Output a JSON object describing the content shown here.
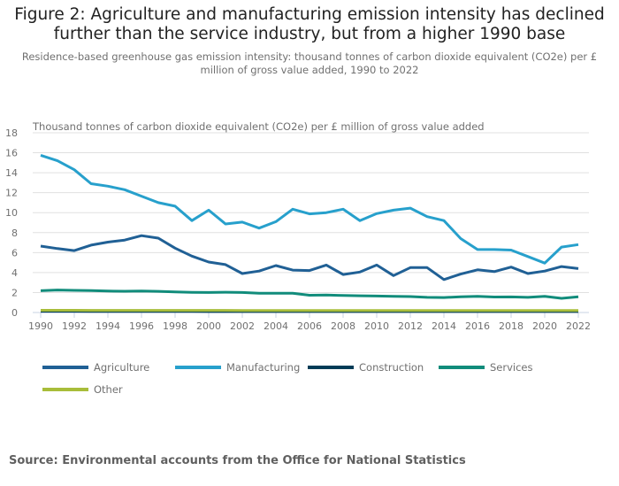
{
  "header": {
    "title": "Figure 2: Agriculture and manufacturing emission intensity has declined further than the service industry, but from a higher 1990 base",
    "subtitle": "Residence-based greenhouse gas emission intensity: thousand tonnes of carbon dioxide equivalent (CO2e) per £ million of gross value added, 1990 to 2022"
  },
  "footer": {
    "source": "Source: Environmental accounts from the Office for National Statistics"
  },
  "chart_data": {
    "type": "line",
    "title": "Figure 2: Agriculture and manufacturing emission intensity has declined further than the service industry, but from a higher 1990 base",
    "subtitle": "Residence-based greenhouse gas emission intensity: thousand tonnes of carbon dioxide equivalent (CO2e) per £ million of gross value added, 1990 to 2022",
    "xlabel": "",
    "ylabel": "Thousand tonnes of carbon dioxide equivalent (CO2e) per £ million of gross value added",
    "x": [
      1990,
      1991,
      1992,
      1993,
      1994,
      1995,
      1996,
      1997,
      1998,
      1999,
      2000,
      2001,
      2002,
      2003,
      2004,
      2005,
      2006,
      2007,
      2008,
      2009,
      2010,
      2011,
      2012,
      2013,
      2014,
      2015,
      2016,
      2017,
      2018,
      2019,
      2020,
      2021,
      2022
    ],
    "xticks": [
      "1990",
      "1992",
      "1994",
      "1996",
      "1998",
      "2000",
      "2002",
      "2004",
      "2006",
      "2008",
      "2010",
      "2012",
      "2014",
      "2016",
      "2018",
      "2020",
      "2022"
    ],
    "yticks": [
      "0",
      "2",
      "4",
      "6",
      "8",
      "10",
      "12",
      "14",
      "16",
      "18"
    ],
    "ylim": [
      0,
      18
    ],
    "xlim": [
      1990,
      2022
    ],
    "grid": true,
    "legend_position": "bottom",
    "series": [
      {
        "name": "Agriculture",
        "color": "#206095",
        "values": [
          6.65,
          6.4,
          6.2,
          6.75,
          7.05,
          7.25,
          7.7,
          7.45,
          6.45,
          5.65,
          5.05,
          4.8,
          3.9,
          4.15,
          4.7,
          4.25,
          4.2,
          4.75,
          3.8,
          4.05,
          4.75,
          3.7,
          4.5,
          4.5,
          3.3,
          3.85,
          4.27,
          4.1,
          4.55,
          3.9,
          4.15,
          4.6,
          4.4
        ]
      },
      {
        "name": "Manufacturing",
        "color": "#27a0cc",
        "values": [
          15.75,
          15.2,
          14.3,
          12.9,
          12.65,
          12.3,
          11.65,
          11.0,
          10.65,
          9.2,
          10.25,
          8.87,
          9.05,
          8.45,
          9.1,
          10.35,
          9.88,
          10.0,
          10.35,
          9.2,
          9.9,
          10.25,
          10.45,
          9.6,
          9.2,
          7.4,
          6.3,
          6.3,
          6.25,
          5.6,
          4.95,
          6.55,
          6.8
        ]
      },
      {
        "name": "Construction",
        "color": "#003c57",
        "values": [
          0.12,
          0.12,
          0.12,
          0.11,
          0.11,
          0.11,
          0.11,
          0.11,
          0.11,
          0.11,
          0.1,
          0.1,
          0.1,
          0.1,
          0.1,
          0.1,
          0.1,
          0.1,
          0.1,
          0.1,
          0.1,
          0.1,
          0.1,
          0.1,
          0.1,
          0.1,
          0.1,
          0.1,
          0.1,
          0.1,
          0.1,
          0.1,
          0.1
        ]
      },
      {
        "name": "Services",
        "color": "#118c7b",
        "values": [
          2.18,
          2.25,
          2.22,
          2.2,
          2.15,
          2.13,
          2.15,
          2.12,
          2.07,
          2.02,
          2.0,
          2.03,
          2.0,
          1.93,
          1.93,
          1.92,
          1.73,
          1.75,
          1.7,
          1.68,
          1.65,
          1.62,
          1.6,
          1.52,
          1.5,
          1.58,
          1.62,
          1.55,
          1.56,
          1.52,
          1.62,
          1.42,
          1.58
        ]
      },
      {
        "name": "Other",
        "color": "#a8bd3a",
        "values": [
          0.22,
          0.22,
          0.22,
          0.21,
          0.21,
          0.21,
          0.21,
          0.21,
          0.21,
          0.21,
          0.21,
          0.21,
          0.2,
          0.2,
          0.2,
          0.2,
          0.2,
          0.2,
          0.2,
          0.2,
          0.2,
          0.2,
          0.2,
          0.2,
          0.2,
          0.2,
          0.2,
          0.2,
          0.2,
          0.2,
          0.2,
          0.2,
          0.2
        ]
      }
    ]
  }
}
